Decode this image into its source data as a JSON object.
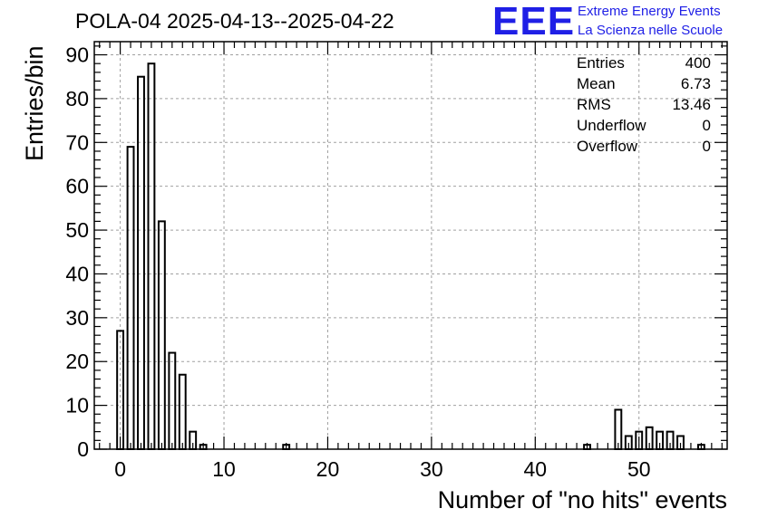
{
  "title": "POLA-04 2025-04-13--2025-04-22",
  "logo": {
    "mark": "EEE",
    "line1": "Extreme Energy Events",
    "line2": "La Scienza nelle Scuole",
    "color": "#1f1fe6"
  },
  "stats": [
    {
      "label": "Entries",
      "value": "400"
    },
    {
      "label": "Mean",
      "value": "6.73"
    },
    {
      "label": "RMS",
      "value": "13.46"
    },
    {
      "label": "Underflow",
      "value": "0"
    },
    {
      "label": "Overflow",
      "value": "0"
    }
  ],
  "chart_data": {
    "type": "bar",
    "title": "POLA-04 2025-04-13--2025-04-22",
    "xlabel": "Number of \"no hits\" events",
    "ylabel": "Entries/bin",
    "xlim": [
      -2.5,
      58.5
    ],
    "ylim": [
      0,
      93
    ],
    "xticks": [
      0,
      10,
      20,
      30,
      40,
      50
    ],
    "yticks": [
      0,
      10,
      20,
      30,
      40,
      50,
      60,
      70,
      80,
      90
    ],
    "grid": true,
    "bin_width": 0.6,
    "bins": [
      {
        "x": 0,
        "value": 27
      },
      {
        "x": 1,
        "value": 69
      },
      {
        "x": 2,
        "value": 85
      },
      {
        "x": 3,
        "value": 88
      },
      {
        "x": 4,
        "value": 52
      },
      {
        "x": 5,
        "value": 22
      },
      {
        "x": 6,
        "value": 17
      },
      {
        "x": 7,
        "value": 4
      },
      {
        "x": 8,
        "value": 1
      },
      {
        "x": 16,
        "value": 1
      },
      {
        "x": 45,
        "value": 1
      },
      {
        "x": 48,
        "value": 9
      },
      {
        "x": 49,
        "value": 3
      },
      {
        "x": 50,
        "value": 4
      },
      {
        "x": 51,
        "value": 5
      },
      {
        "x": 52,
        "value": 4
      },
      {
        "x": 53,
        "value": 4
      },
      {
        "x": 54,
        "value": 3
      },
      {
        "x": 56,
        "value": 1
      }
    ]
  }
}
